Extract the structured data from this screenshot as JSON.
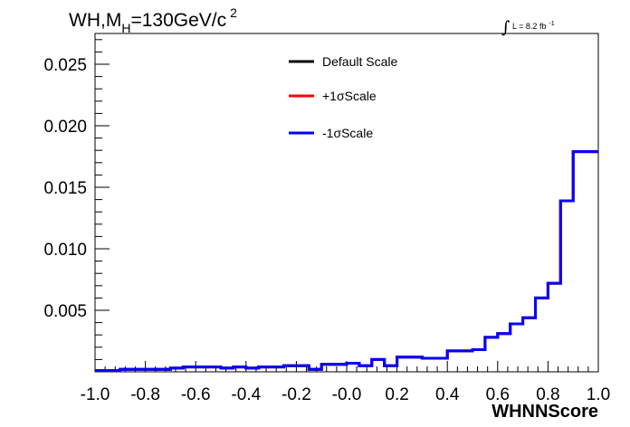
{
  "chart_data": {
    "type": "line",
    "title_main": "WH,M",
    "title_sub": "H",
    "title_rest": "=130GeV/c",
    "title_sup": "2",
    "luminosity_label": "L = 8.2 fb",
    "luminosity_sup": "-1",
    "xlabel": "WHNNScore",
    "ylabel": "",
    "xlim": [
      -1.0,
      1.0
    ],
    "ylim": [
      0,
      0.0275
    ],
    "x_ticks": [
      "-1.0",
      "-0.8",
      "-0.6",
      "-0.4",
      "-0.2",
      "-0.0",
      "0.2",
      "0.4",
      "0.6",
      "0.8",
      "1.0"
    ],
    "y_ticks": [
      "0.005",
      "0.010",
      "0.015",
      "0.020",
      "0.025"
    ],
    "legend_position": "top-center",
    "bin_edges": [
      -1.0,
      -0.95,
      -0.9,
      -0.85,
      -0.8,
      -0.75,
      -0.7,
      -0.65,
      -0.6,
      -0.55,
      -0.5,
      -0.45,
      -0.4,
      -0.35,
      -0.3,
      -0.25,
      -0.2,
      -0.15,
      -0.1,
      -0.05,
      0.0,
      0.05,
      0.1,
      0.15,
      0.2,
      0.25,
      0.3,
      0.35,
      0.4,
      0.45,
      0.5,
      0.55,
      0.6,
      0.65,
      0.7,
      0.75,
      0.8,
      0.85,
      0.9,
      0.95,
      1.0
    ],
    "series": [
      {
        "name": "Default Scale",
        "color": "#000000",
        "values": [
          0.0001,
          0.0001,
          0.0002,
          0.0002,
          0.0002,
          0.0002,
          0.0003,
          0.0004,
          0.0004,
          0.0004,
          0.0003,
          0.0004,
          0.0003,
          0.0004,
          0.0004,
          0.0005,
          0.0005,
          0.0002,
          0.0006,
          0.0006,
          0.0007,
          0.0005,
          0.001,
          0.0005,
          0.0012,
          0.0012,
          0.0011,
          0.0011,
          0.0017,
          0.0017,
          0.0018,
          0.0028,
          0.0031,
          0.0039,
          0.0044,
          0.006,
          0.0072,
          0.0139,
          0.0179,
          0.0179
        ]
      },
      {
        "name": "+1σScale",
        "color": "#ff0000",
        "values": [
          0.0001,
          0.0001,
          0.0002,
          0.0002,
          0.0002,
          0.0002,
          0.0003,
          0.0004,
          0.0004,
          0.0004,
          0.0003,
          0.0004,
          0.0003,
          0.0004,
          0.0004,
          0.0005,
          0.0005,
          0.0002,
          0.0006,
          0.0006,
          0.0007,
          0.0005,
          0.001,
          0.0005,
          0.0012,
          0.0012,
          0.0011,
          0.0011,
          0.0017,
          0.0017,
          0.0018,
          0.0028,
          0.0031,
          0.0039,
          0.0044,
          0.006,
          0.0072,
          0.0139,
          0.0179,
          0.0179
        ]
      },
      {
        "name": "-1σScale",
        "color": "#0000ff",
        "values": [
          0.0001,
          0.0001,
          0.0002,
          0.0002,
          0.0002,
          0.0002,
          0.0003,
          0.0004,
          0.0004,
          0.0004,
          0.0003,
          0.0004,
          0.0003,
          0.0004,
          0.0004,
          0.0005,
          0.0005,
          0.0002,
          0.0006,
          0.0006,
          0.0007,
          0.0005,
          0.001,
          0.0005,
          0.0012,
          0.0012,
          0.0011,
          0.0011,
          0.0017,
          0.0017,
          0.0018,
          0.0028,
          0.0031,
          0.0039,
          0.0044,
          0.006,
          0.0072,
          0.0139,
          0.0179,
          0.0179
        ]
      }
    ]
  }
}
